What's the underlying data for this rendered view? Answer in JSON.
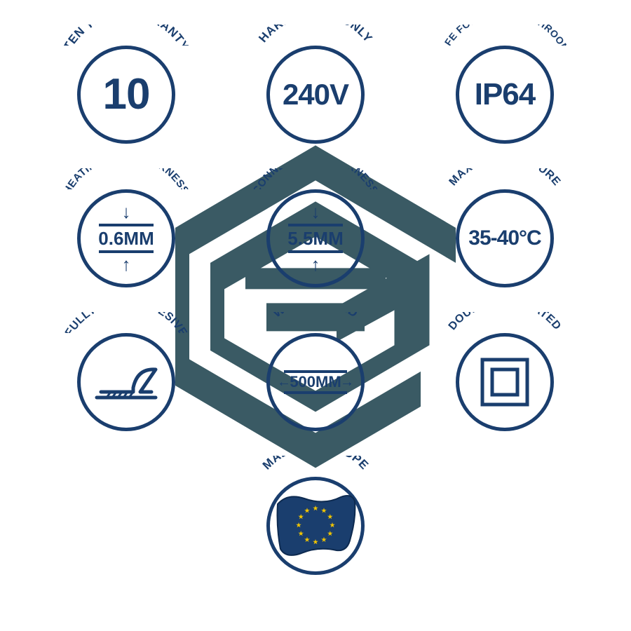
{
  "colors": {
    "primary": "#1a3e6e",
    "bgLogo": "#3a5a64",
    "euBlue": "#1a3e6e",
    "euStar": "#f2c500"
  },
  "bgLogoSize": 500,
  "arcLabel": {
    "fontSize": 17
  },
  "circle": {
    "diameter": 140,
    "border": 5
  },
  "badges": {
    "warranty": {
      "label": "TEN YEAR WARRANTY",
      "value": "10",
      "valueSize": 62
    },
    "hardwiring": {
      "label": "HARDWIRING ONLY",
      "value": "240V",
      "valueSize": 42
    },
    "ip": {
      "label": "SAFE FOR USE IN BATHROOMS",
      "value": "IP64",
      "valueSize": 44
    },
    "padThick": {
      "label": "HEATING PAD THICKNESS",
      "value": "0.6MM",
      "valueSize": 26
    },
    "connThick": {
      "label": "CONNECTION THICKNESS",
      "value": "5.5MM",
      "valueSize": 26
    },
    "maxTemp": {
      "label": "MAX TEMPERATURE",
      "value": "35-40°C",
      "valueSize": 30
    },
    "adhesive": {
      "label": "FULLY SELF-ADHESIVE"
    },
    "wiringLead": {
      "label": "WIRING LEAD",
      "value": "500MM",
      "valueSize": 22
    },
    "doubleIns": {
      "label": "DOUBLE INSULATED"
    },
    "europe": {
      "label": "MADE IN EUROPE"
    }
  }
}
